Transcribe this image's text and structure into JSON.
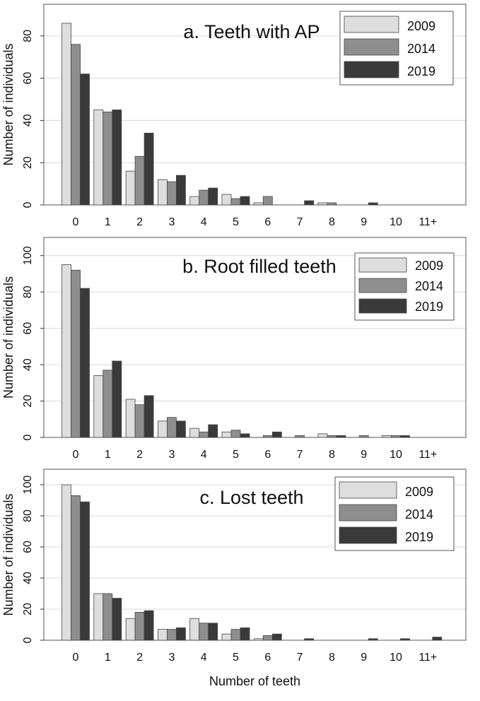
{
  "colors": {
    "s2009": "#dedede",
    "s2014": "#8e8e8e",
    "s2019": "#3a3a3a",
    "gridline": "#d9d9d9",
    "frame": "#555555"
  },
  "chart_data": [
    {
      "type": "bar",
      "title": "a. Teeth with AP",
      "xlabel": "",
      "ylabel": "Number of individuals",
      "categories": [
        "0",
        "1",
        "2",
        "3",
        "4",
        "5",
        "6",
        "7",
        "8",
        "9",
        "10",
        "11+"
      ],
      "ylim": [
        0,
        95
      ],
      "yticks": [
        0,
        20,
        40,
        60,
        80
      ],
      "legend": "top-right",
      "series": [
        {
          "name": "2009",
          "values": [
            86,
            45,
            16,
            12,
            4,
            5,
            1,
            0,
            1,
            0,
            0,
            0
          ]
        },
        {
          "name": "2014",
          "values": [
            76,
            44,
            23,
            11,
            7,
            3,
            4,
            0,
            1,
            0,
            0,
            0
          ]
        },
        {
          "name": "2019",
          "values": [
            62,
            45,
            34,
            14,
            8,
            4,
            0,
            2,
            0,
            1,
            0,
            0
          ]
        }
      ]
    },
    {
      "type": "bar",
      "title": "b. Root filled teeth",
      "xlabel": "",
      "ylabel": "Number of individuals",
      "categories": [
        "0",
        "1",
        "2",
        "3",
        "4",
        "5",
        "6",
        "7",
        "8",
        "9",
        "10",
        "11+"
      ],
      "ylim": [
        0,
        110
      ],
      "yticks": [
        0,
        20,
        40,
        60,
        80,
        100
      ],
      "legend": "top-right",
      "series": [
        {
          "name": "2009",
          "values": [
            95,
            34,
            21,
            9,
            5,
            3,
            0,
            0,
            2,
            0,
            1,
            0
          ]
        },
        {
          "name": "2014",
          "values": [
            92,
            37,
            18,
            11,
            3,
            4,
            1,
            1,
            1,
            1,
            1,
            0
          ]
        },
        {
          "name": "2019",
          "values": [
            82,
            42,
            23,
            9,
            7,
            2,
            3,
            0,
            1,
            0,
            1,
            0
          ]
        }
      ]
    },
    {
      "type": "bar",
      "title": "c. Lost teeth",
      "xlabel": "Number of teeth",
      "ylabel": "Number of individuals",
      "categories": [
        "0",
        "1",
        "2",
        "3",
        "4",
        "5",
        "6",
        "7",
        "8",
        "9",
        "10",
        "11+"
      ],
      "ylim": [
        0,
        110
      ],
      "yticks": [
        0,
        20,
        40,
        60,
        80,
        100
      ],
      "legend": "top-right",
      "series": [
        {
          "name": "2009",
          "values": [
            100,
            30,
            14,
            7,
            14,
            4,
            1,
            0,
            0,
            0,
            0,
            0
          ]
        },
        {
          "name": "2014",
          "values": [
            93,
            30,
            18,
            7,
            11,
            7,
            3,
            0,
            0,
            0,
            0,
            0
          ]
        },
        {
          "name": "2019",
          "values": [
            89,
            27,
            19,
            8,
            11,
            8,
            4,
            1,
            0,
            1,
            1,
            2
          ]
        }
      ]
    }
  ]
}
